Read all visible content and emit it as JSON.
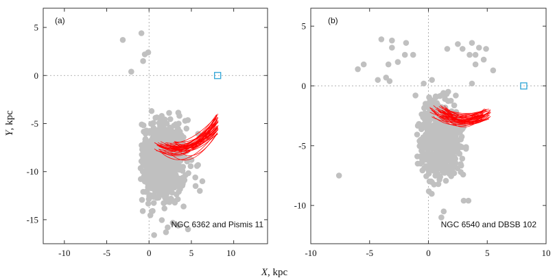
{
  "chart_data": [
    {
      "type": "scatter",
      "panel_label": "(a)",
      "caption": "NGC 6362 and Pismis 11",
      "xlim": [
        -12.5,
        14
      ],
      "ylim": [
        7,
        -17.5
      ],
      "xticks": [
        -10,
        -5,
        0,
        5,
        10
      ],
      "yticks": [
        -15,
        -10,
        -5,
        0,
        5
      ],
      "point_color": "#c0c0c0",
      "orbit_color": "#ff0000",
      "sun_marker": {
        "x": 8.1,
        "y": 0,
        "color": "#2aa3d6"
      },
      "cloud": {
        "cx": 1.5,
        "cy": -9.0,
        "rx": 2.6,
        "ry": 4.0,
        "n": 650,
        "xmin": -1.0,
        "xmax": 6.8,
        "ymin": -16.5,
        "ymax": -3.8
      },
      "outliers": [
        {
          "x": 0.6,
          "y": -16.6
        },
        {
          "x": 2.0,
          "y": -16.3
        },
        {
          "x": 2.2,
          "y": -15.8
        },
        {
          "x": 4.6,
          "y": -16.0
        },
        {
          "x": 6.0,
          "y": -12.0
        },
        {
          "x": 6.3,
          "y": -11.0
        },
        {
          "x": 0.3,
          "y": -3.7
        },
        {
          "x": 1.5,
          "y": -4.2
        },
        {
          "x": 3.5,
          "y": -5.0
        },
        {
          "x": -2.1,
          "y": 0.4
        },
        {
          "x": -0.7,
          "y": 1.5
        },
        {
          "x": -0.5,
          "y": 2.2
        },
        {
          "x": -0.1,
          "y": 2.4
        },
        {
          "x": -3.1,
          "y": 3.7
        },
        {
          "x": -0.9,
          "y": 4.4
        }
      ],
      "orbits": {
        "count": 40,
        "start_x": [
          0.6,
          3.3
        ],
        "start_y": [
          -8.6,
          -6.8
        ],
        "end_x": [
          7.9,
          8.2
        ],
        "end_y": [
          -4.0,
          -6.1
        ],
        "bulge": [
          -2.4,
          -0.4
        ]
      }
    },
    {
      "type": "scatter",
      "panel_label": "(b)",
      "caption": "NGC 6540 and DBSB 102",
      "xlim": [
        -10,
        10
      ],
      "ylim": [
        6.5,
        -13.2
      ],
      "xticks": [
        -10,
        -5,
        0,
        5,
        10
      ],
      "yticks": [
        -10,
        -5,
        0,
        5
      ],
      "point_color": "#c0c0c0",
      "orbit_color": "#ff0000",
      "sun_marker": {
        "x": 8.1,
        "y": 0,
        "color": "#2aa3d6"
      },
      "cloud": {
        "cx": 1.0,
        "cy": -4.5,
        "rx": 1.7,
        "ry": 2.9,
        "n": 520,
        "xmin": -1.0,
        "xmax": 3.5,
        "ymin": -10.0,
        "ymax": 0.1
      },
      "outliers": [
        {
          "x": 1.1,
          "y": -11.0
        },
        {
          "x": 1.3,
          "y": -10.5
        },
        {
          "x": 3.0,
          "y": -9.6
        },
        {
          "x": 3.4,
          "y": -9.6
        },
        {
          "x": -7.6,
          "y": -7.5
        },
        {
          "x": -6.0,
          "y": 1.4
        },
        {
          "x": -5.5,
          "y": 1.8
        },
        {
          "x": -4.3,
          "y": 0.5
        },
        {
          "x": -3.3,
          "y": 0.4
        },
        {
          "x": -3.6,
          "y": 0.7
        },
        {
          "x": -2.6,
          "y": 2.0
        },
        {
          "x": -3.4,
          "y": 1.8
        },
        {
          "x": -1.3,
          "y": 2.6
        },
        {
          "x": -2.0,
          "y": 2.6
        },
        {
          "x": -3.1,
          "y": 3.2
        },
        {
          "x": -4.0,
          "y": 3.9
        },
        {
          "x": -3.1,
          "y": 3.8
        },
        {
          "x": -1.9,
          "y": 3.6
        },
        {
          "x": 3.7,
          "y": 0.2
        },
        {
          "x": 5.5,
          "y": 1.3
        },
        {
          "x": 4.0,
          "y": 1.8
        },
        {
          "x": 4.7,
          "y": 2.2
        },
        {
          "x": 3.5,
          "y": 2.6
        },
        {
          "x": 4.0,
          "y": 2.6
        },
        {
          "x": 1.6,
          "y": 3.1
        },
        {
          "x": 2.9,
          "y": 3.1
        },
        {
          "x": 4.3,
          "y": 3.2
        },
        {
          "x": 4.9,
          "y": 3.1
        },
        {
          "x": 3.7,
          "y": 3.6
        },
        {
          "x": 2.5,
          "y": 3.5
        },
        {
          "x": -0.4,
          "y": 0.2
        },
        {
          "x": -1.1,
          "y": -0.8
        },
        {
          "x": 0.3,
          "y": 0.5
        }
      ],
      "orbits": {
        "count": 40,
        "start_x": [
          0.1,
          1.7
        ],
        "start_y": [
          -3.0,
          -1.6
        ],
        "end_x": [
          4.5,
          5.3
        ],
        "end_y": [
          -1.9,
          -2.8
        ],
        "bulge": [
          -1.7,
          -0.4
        ]
      }
    }
  ],
  "x_axis_label": {
    "symbol": "X",
    "unit": ",  kpc"
  },
  "y_axis_label": {
    "symbol": "Y",
    "unit": ",  kpc"
  }
}
